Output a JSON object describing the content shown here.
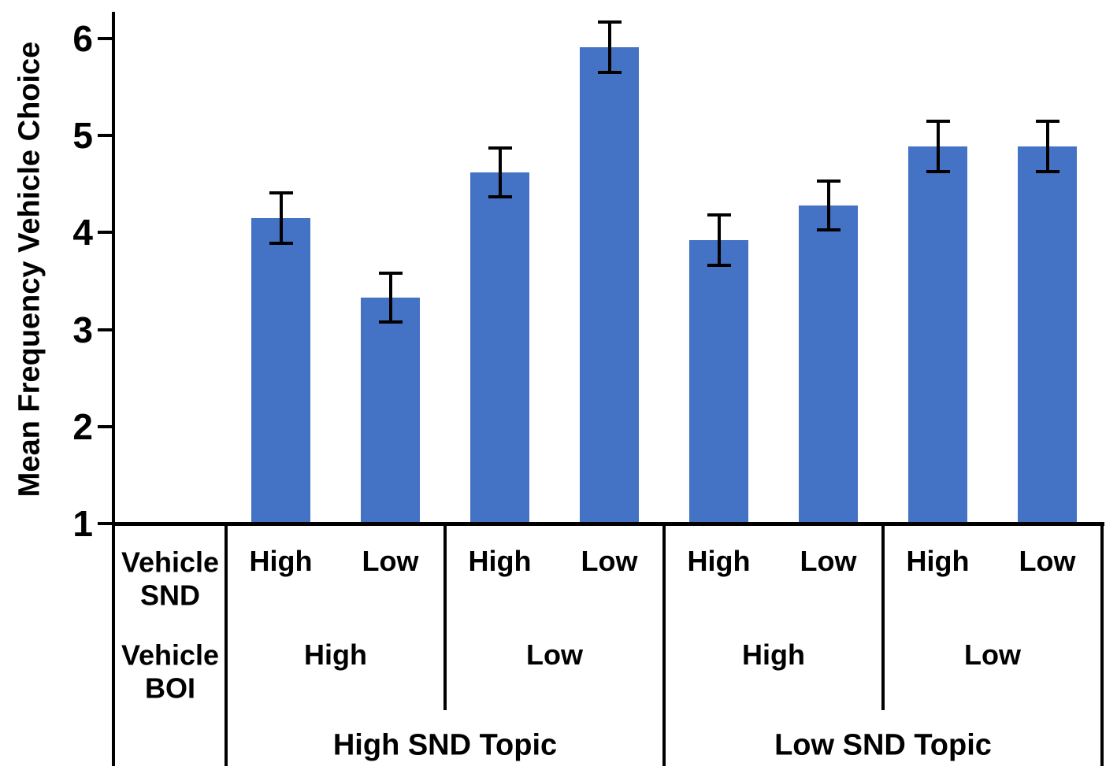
{
  "colors": {
    "bar_fill": "#4472C4",
    "line": "#000000",
    "background": "#ffffff",
    "text": "#000000"
  },
  "chart_data": {
    "type": "bar",
    "title": "",
    "xlabel": "",
    "ylabel": "Mean Frequency Vehicle Choice",
    "ylim": [
      1,
      6.2
    ],
    "yticks": [
      1,
      2,
      3,
      4,
      5,
      6
    ],
    "grid": false,
    "legend": null,
    "error_bars": true,
    "categories_hierarchy": {
      "row_headers": [
        "Vehicle SND",
        "Vehicle BOI"
      ],
      "vehicle_snd_row": [
        "High",
        "Low",
        "High",
        "Low",
        "High",
        "Low",
        "High",
        "Low"
      ],
      "vehicle_boi_row": [
        "High",
        "Low",
        "High",
        "Low"
      ],
      "topic_row": [
        "High SND Topic",
        "Low SND Topic"
      ]
    },
    "series": [
      {
        "name": "Mean Frequency Vehicle Choice",
        "points": [
          {
            "topic": "High SND Topic",
            "vehicle_boi": "High",
            "vehicle_snd": "High",
            "value": 4.15,
            "error": 0.26
          },
          {
            "topic": "High SND Topic",
            "vehicle_boi": "High",
            "vehicle_snd": "Low",
            "value": 3.33,
            "error": 0.25
          },
          {
            "topic": "High SND Topic",
            "vehicle_boi": "Low",
            "vehicle_snd": "High",
            "value": 4.62,
            "error": 0.25
          },
          {
            "topic": "High SND Topic",
            "vehicle_boi": "Low",
            "vehicle_snd": "Low",
            "value": 5.91,
            "error": 0.26
          },
          {
            "topic": "Low SND Topic",
            "vehicle_boi": "High",
            "vehicle_snd": "High",
            "value": 3.92,
            "error": 0.26
          },
          {
            "topic": "Low SND Topic",
            "vehicle_boi": "High",
            "vehicle_snd": "Low",
            "value": 4.28,
            "error": 0.25
          },
          {
            "topic": "Low SND Topic",
            "vehicle_boi": "Low",
            "vehicle_snd": "High",
            "value": 4.89,
            "error": 0.26
          },
          {
            "topic": "Low SND Topic",
            "vehicle_boi": "Low",
            "vehicle_snd": "Low",
            "value": 4.89,
            "error": 0.26
          }
        ]
      }
    ]
  }
}
